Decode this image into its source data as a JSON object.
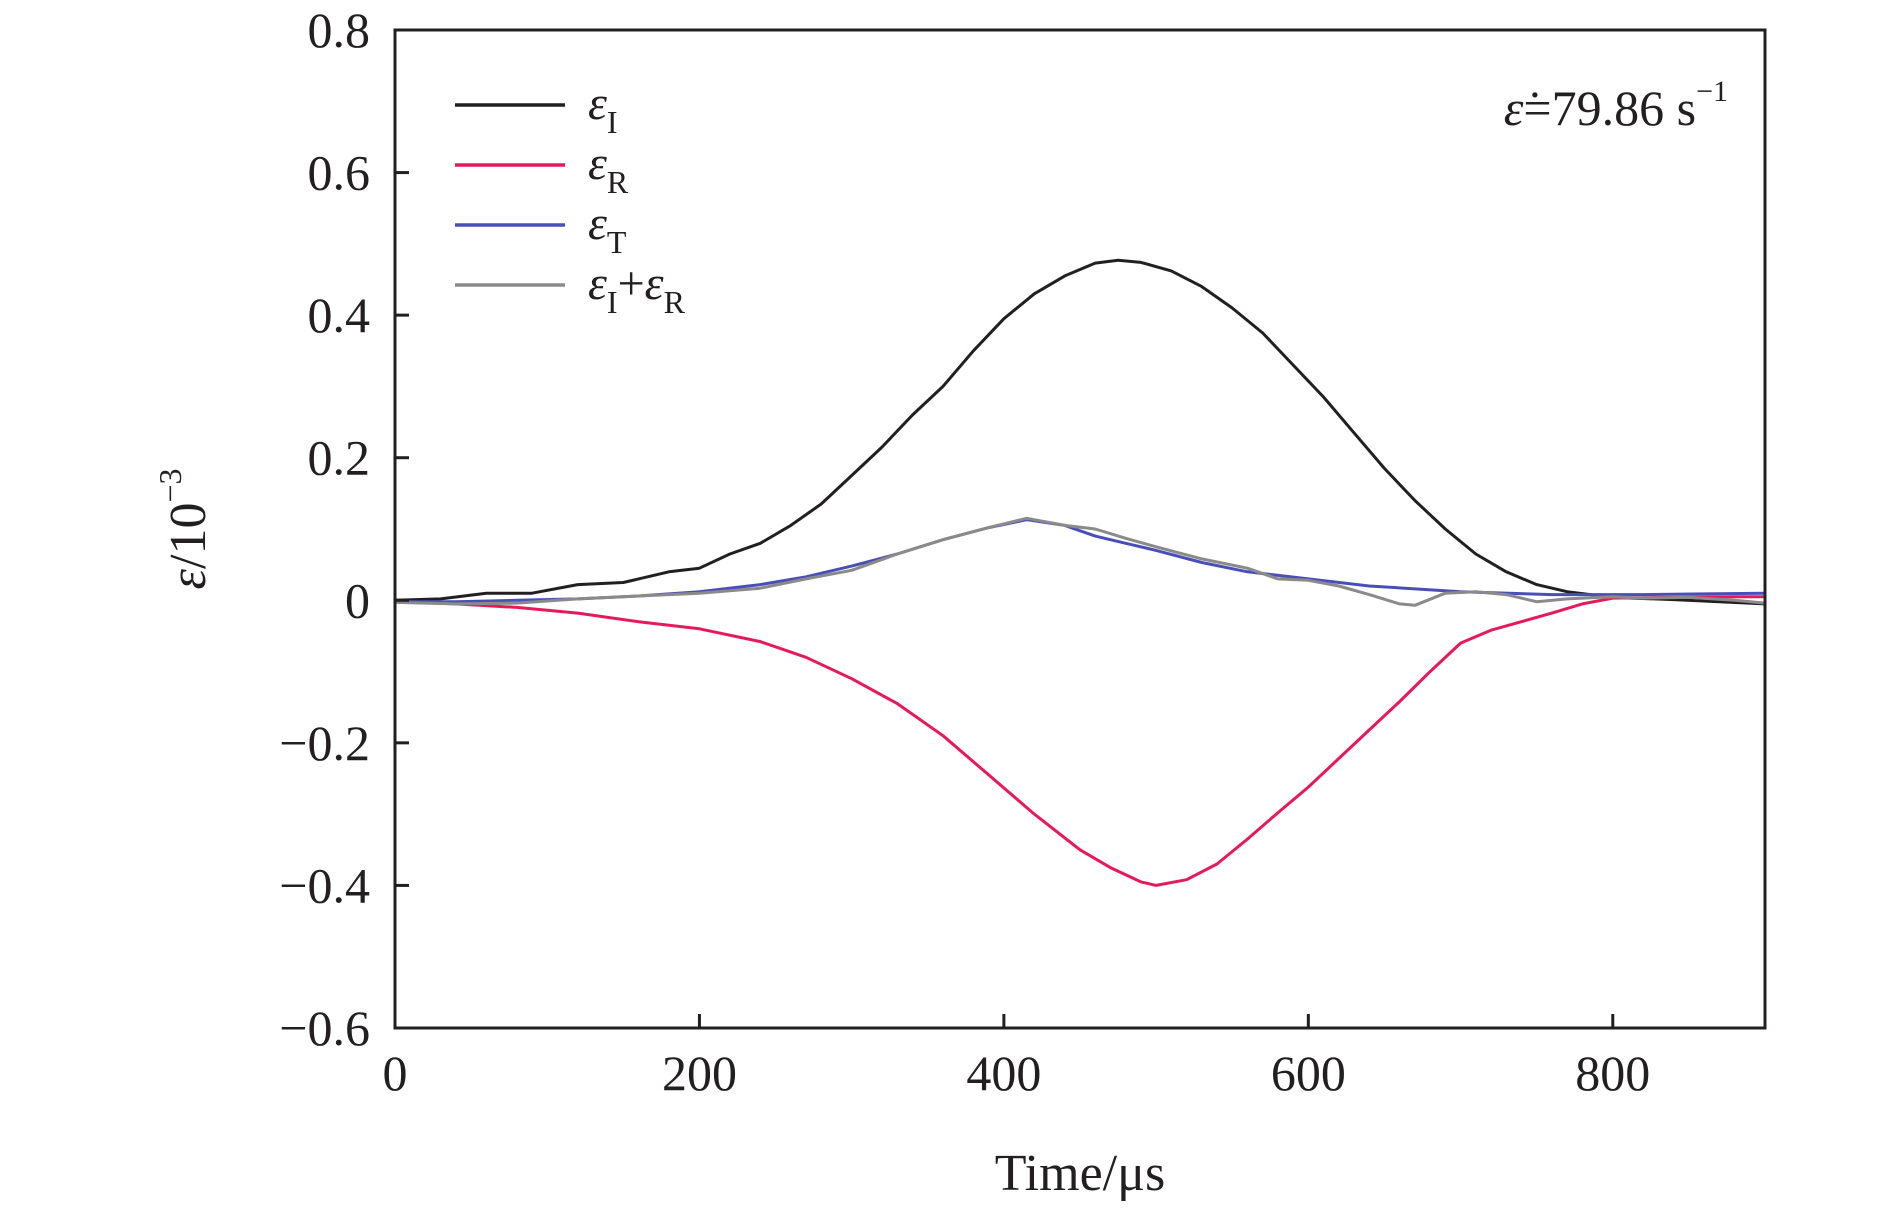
{
  "chart_data": {
    "type": "line",
    "xlabel": "Time/μs",
    "ylabel_prefix": "ε/10",
    "ylabel_exp": "−3",
    "xlim": [
      0,
      900
    ],
    "ylim": [
      -0.6,
      0.8
    ],
    "x_ticks": [
      0,
      200,
      400,
      600,
      800
    ],
    "x_tick_labels": [
      "0",
      "200",
      "400",
      "600",
      "800"
    ],
    "y_ticks": [
      -0.6,
      -0.4,
      -0.2,
      0,
      0.2,
      0.4,
      0.6,
      0.8
    ],
    "y_tick_labels": [
      "−0.6",
      "−0.4",
      "−0.2",
      "0",
      "0.2",
      "0.4",
      "0.6",
      "0.8"
    ],
    "grid": false,
    "legend_position": "top-left",
    "annotation": {
      "symbol": "ε̇",
      "text": "=79.86 s",
      "exp": "−1"
    },
    "series": [
      {
        "name": "εI",
        "label_main": "ε",
        "label_sub": "I",
        "color": "#231f20",
        "points": [
          [
            0,
            0
          ],
          [
            30,
            0.002
          ],
          [
            60,
            0.01
          ],
          [
            90,
            0.01
          ],
          [
            120,
            0.022
          ],
          [
            150,
            0.025
          ],
          [
            180,
            0.04
          ],
          [
            200,
            0.045
          ],
          [
            220,
            0.065
          ],
          [
            240,
            0.08
          ],
          [
            260,
            0.105
          ],
          [
            280,
            0.135
          ],
          [
            300,
            0.175
          ],
          [
            320,
            0.215
          ],
          [
            340,
            0.26
          ],
          [
            360,
            0.3
          ],
          [
            380,
            0.35
          ],
          [
            400,
            0.395
          ],
          [
            420,
            0.43
          ],
          [
            440,
            0.455
          ],
          [
            460,
            0.473
          ],
          [
            475,
            0.477
          ],
          [
            490,
            0.474
          ],
          [
            510,
            0.462
          ],
          [
            530,
            0.44
          ],
          [
            550,
            0.41
          ],
          [
            570,
            0.375
          ],
          [
            590,
            0.33
          ],
          [
            610,
            0.285
          ],
          [
            630,
            0.235
          ],
          [
            650,
            0.185
          ],
          [
            670,
            0.14
          ],
          [
            690,
            0.1
          ],
          [
            710,
            0.065
          ],
          [
            730,
            0.04
          ],
          [
            750,
            0.022
          ],
          [
            770,
            0.012
          ],
          [
            800,
            0.004
          ],
          [
            840,
            0.001
          ],
          [
            870,
            -0.002
          ],
          [
            900,
            -0.005
          ]
        ]
      },
      {
        "name": "εR",
        "label_main": "ε",
        "label_sub": "R",
        "color": "#e6195a",
        "points": [
          [
            0,
            -0.002
          ],
          [
            40,
            -0.005
          ],
          [
            80,
            -0.01
          ],
          [
            120,
            -0.018
          ],
          [
            160,
            -0.03
          ],
          [
            200,
            -0.04
          ],
          [
            240,
            -0.058
          ],
          [
            270,
            -0.08
          ],
          [
            300,
            -0.11
          ],
          [
            330,
            -0.145
          ],
          [
            360,
            -0.19
          ],
          [
            390,
            -0.245
          ],
          [
            420,
            -0.3
          ],
          [
            450,
            -0.35
          ],
          [
            470,
            -0.375
          ],
          [
            490,
            -0.395
          ],
          [
            500,
            -0.4
          ],
          [
            520,
            -0.392
          ],
          [
            540,
            -0.37
          ],
          [
            560,
            -0.335
          ],
          [
            580,
            -0.298
          ],
          [
            600,
            -0.262
          ],
          [
            620,
            -0.222
          ],
          [
            640,
            -0.182
          ],
          [
            660,
            -0.142
          ],
          [
            680,
            -0.1
          ],
          [
            700,
            -0.06
          ],
          [
            720,
            -0.042
          ],
          [
            740,
            -0.03
          ],
          [
            760,
            -0.018
          ],
          [
            780,
            -0.005
          ],
          [
            800,
            0.003
          ],
          [
            840,
            0.004
          ],
          [
            880,
            0.005
          ],
          [
            900,
            0.005
          ]
        ]
      },
      {
        "name": "εT",
        "label_main": "ε",
        "label_sub": "T",
        "color": "#4a4fb8",
        "points": [
          [
            0,
            -0.002
          ],
          [
            40,
            -0.002
          ],
          [
            80,
            0.0
          ],
          [
            120,
            0.002
          ],
          [
            160,
            0.006
          ],
          [
            200,
            0.012
          ],
          [
            240,
            0.022
          ],
          [
            270,
            0.033
          ],
          [
            300,
            0.048
          ],
          [
            330,
            0.065
          ],
          [
            360,
            0.085
          ],
          [
            390,
            0.102
          ],
          [
            415,
            0.113
          ],
          [
            440,
            0.105
          ],
          [
            460,
            0.09
          ],
          [
            480,
            0.08
          ],
          [
            500,
            0.07
          ],
          [
            530,
            0.053
          ],
          [
            560,
            0.04
          ],
          [
            600,
            0.03
          ],
          [
            640,
            0.02
          ],
          [
            700,
            0.012
          ],
          [
            760,
            0.008
          ],
          [
            820,
            0.008
          ],
          [
            860,
            0.009
          ],
          [
            900,
            0.01
          ]
        ]
      },
      {
        "name": "εI+εR",
        "label_main": "ε",
        "label_sub": "I",
        "label_plus": "+",
        "label_main2": "ε",
        "label_sub2": "R",
        "color": "#8a8a8a",
        "points": [
          [
            0,
            -0.003
          ],
          [
            40,
            -0.005
          ],
          [
            80,
            -0.004
          ],
          [
            120,
            0.002
          ],
          [
            160,
            0.006
          ],
          [
            200,
            0.01
          ],
          [
            240,
            0.017
          ],
          [
            270,
            0.03
          ],
          [
            300,
            0.042
          ],
          [
            330,
            0.065
          ],
          [
            360,
            0.085
          ],
          [
            390,
            0.102
          ],
          [
            415,
            0.115
          ],
          [
            440,
            0.105
          ],
          [
            460,
            0.1
          ],
          [
            480,
            0.087
          ],
          [
            500,
            0.075
          ],
          [
            530,
            0.058
          ],
          [
            560,
            0.045
          ],
          [
            580,
            0.03
          ],
          [
            600,
            0.028
          ],
          [
            620,
            0.02
          ],
          [
            640,
            0.008
          ],
          [
            660,
            -0.005
          ],
          [
            670,
            -0.007
          ],
          [
            690,
            0.01
          ],
          [
            710,
            0.012
          ],
          [
            730,
            0.008
          ],
          [
            750,
            -0.002
          ],
          [
            770,
            0.002
          ],
          [
            800,
            0.005
          ],
          [
            820,
            0.003
          ],
          [
            850,
            0.004
          ],
          [
            880,
            0.0
          ],
          [
            900,
            -0.004
          ]
        ]
      }
    ]
  }
}
